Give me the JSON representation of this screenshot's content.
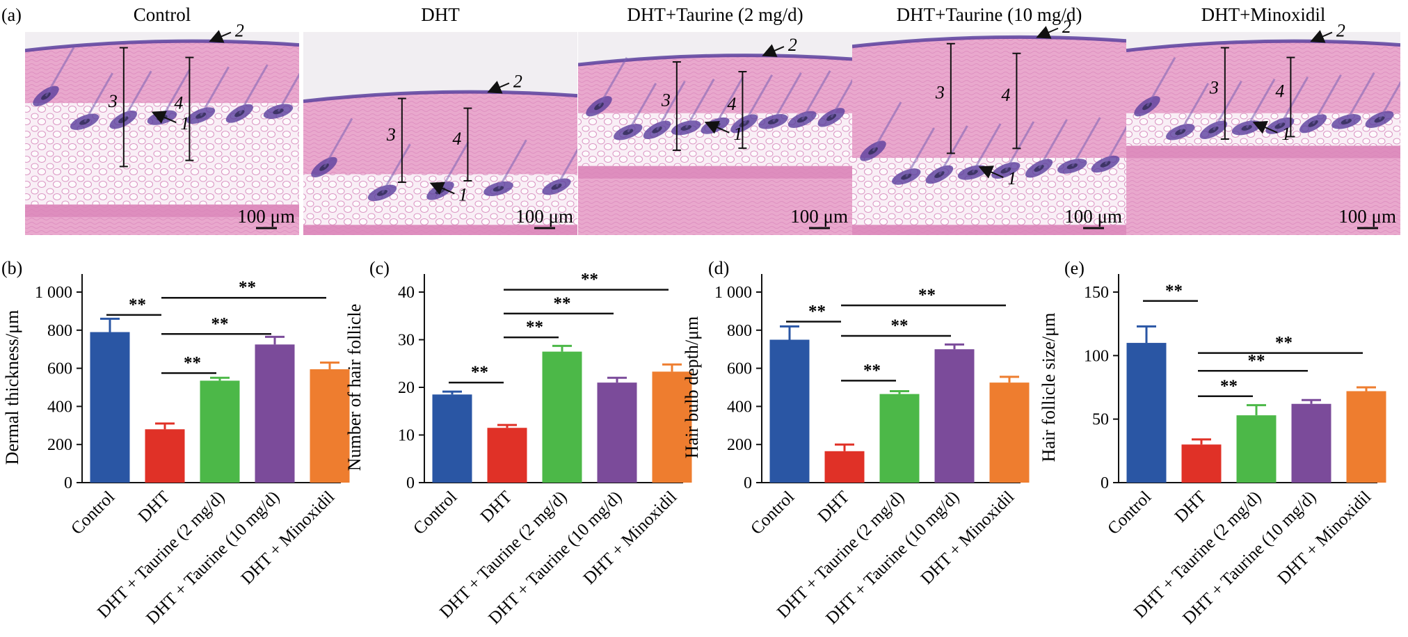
{
  "figure": {
    "micrograph_letter": "(a)",
    "micrograph_titles": [
      "Control",
      "DHT",
      "DHT+Taurine (2 mg/d)",
      "DHT+Taurine (10 mg/d)",
      "DHT+Minoxidil"
    ],
    "scale_bar_label": "100 μm",
    "structure_labels": [
      "1",
      "2",
      "3",
      "4"
    ]
  },
  "colors": {
    "Control": "#2a56a4",
    "DHT": "#e03127",
    "DHT + Taurine (2 mg/d)": "#4cb848",
    "DHT + Taurine (10 mg/d)": "#7b4b9a",
    "DHT + Minoxidil": "#ee7d2f",
    "tissue": "#e9a8cd",
    "stain": "#5a3f9e"
  },
  "chart_data": [
    {
      "panel": "(b)",
      "type": "bar",
      "ylabel": "Dermal thickness/μm",
      "categories": [
        "Control",
        "DHT",
        "DHT + Taurine (2 mg/d)",
        "DHT + Taurine (10 mg/d)",
        "DHT + Minoxidil"
      ],
      "values": [
        790,
        280,
        535,
        725,
        595
      ],
      "errors": [
        70,
        30,
        15,
        40,
        35
      ],
      "ylim": [
        0,
        1000
      ],
      "yticks": [
        0,
        200,
        400,
        600,
        800,
        1000
      ],
      "ytick_labels": [
        "0",
        "200",
        "400",
        "600",
        "800",
        "1 000"
      ],
      "significance": [
        {
          "from": 0,
          "to": 1,
          "y": 880,
          "label": "**"
        },
        {
          "from": 1,
          "to": 2,
          "y": 575,
          "label": "**"
        },
        {
          "from": 1,
          "to": 3,
          "y": 780,
          "label": "**"
        },
        {
          "from": 1,
          "to": 4,
          "y": 970,
          "label": "**"
        }
      ]
    },
    {
      "panel": "(c)",
      "type": "bar",
      "ylabel": "Number of hair follicle",
      "categories": [
        "Control",
        "DHT",
        "DHT + Taurine (2 mg/d)",
        "DHT + Taurine (10 mg/d)",
        "DHT + Minoxidil"
      ],
      "values": [
        18.5,
        11.5,
        27.5,
        21,
        23.3
      ],
      "errors": [
        0.6,
        0.6,
        1.2,
        1.0,
        1.5
      ],
      "ylim": [
        0,
        40
      ],
      "yticks": [
        0,
        10,
        20,
        30,
        40
      ],
      "ytick_labels": [
        "0",
        "10",
        "20",
        "30",
        "40"
      ],
      "significance": [
        {
          "from": 0,
          "to": 1,
          "y": 21,
          "label": "**"
        },
        {
          "from": 1,
          "to": 2,
          "y": 30.5,
          "label": "**"
        },
        {
          "from": 1,
          "to": 3,
          "y": 35.5,
          "label": "**"
        },
        {
          "from": 1,
          "to": 4,
          "y": 40.5,
          "label": "**"
        }
      ]
    },
    {
      "panel": "(d)",
      "type": "bar",
      "ylabel": "Hair bulb depth/μm",
      "categories": [
        "Control",
        "DHT",
        "DHT + Taurine (2 mg/d)",
        "DHT + Taurine (10 mg/d)",
        "DHT + Minoxidil"
      ],
      "values": [
        750,
        165,
        465,
        700,
        525
      ],
      "errors": [
        70,
        35,
        15,
        25,
        30
      ],
      "ylim": [
        0,
        1000
      ],
      "yticks": [
        0,
        200,
        400,
        600,
        800,
        1000
      ],
      "ytick_labels": [
        "0",
        "200",
        "400",
        "600",
        "800",
        "1 000"
      ],
      "significance": [
        {
          "from": 0,
          "to": 1,
          "y": 845,
          "label": "**"
        },
        {
          "from": 1,
          "to": 2,
          "y": 535,
          "label": "**"
        },
        {
          "from": 1,
          "to": 3,
          "y": 770,
          "label": "**"
        },
        {
          "from": 1,
          "to": 4,
          "y": 930,
          "label": "**"
        }
      ]
    },
    {
      "panel": "(e)",
      "type": "bar",
      "ylabel": "Hair follicle size/μm",
      "categories": [
        "Control",
        "DHT",
        "DHT + Taurine (2 mg/d)",
        "DHT + Taurine (10 mg/d)",
        "DHT + Minoxidil"
      ],
      "values": [
        110,
        30,
        53,
        62,
        72
      ],
      "errors": [
        13,
        4,
        8,
        3,
        3
      ],
      "ylim": [
        0,
        150
      ],
      "yticks": [
        0,
        50,
        100,
        150
      ],
      "ytick_labels": [
        "0",
        "50",
        "100",
        "150"
      ],
      "significance": [
        {
          "from": 0,
          "to": 1,
          "y": 143,
          "label": "**"
        },
        {
          "from": 1,
          "to": 2,
          "y": 68,
          "label": "**"
        },
        {
          "from": 1,
          "to": 3,
          "y": 88,
          "label": "**"
        },
        {
          "from": 1,
          "to": 4,
          "y": 102,
          "label": "**"
        }
      ]
    }
  ]
}
